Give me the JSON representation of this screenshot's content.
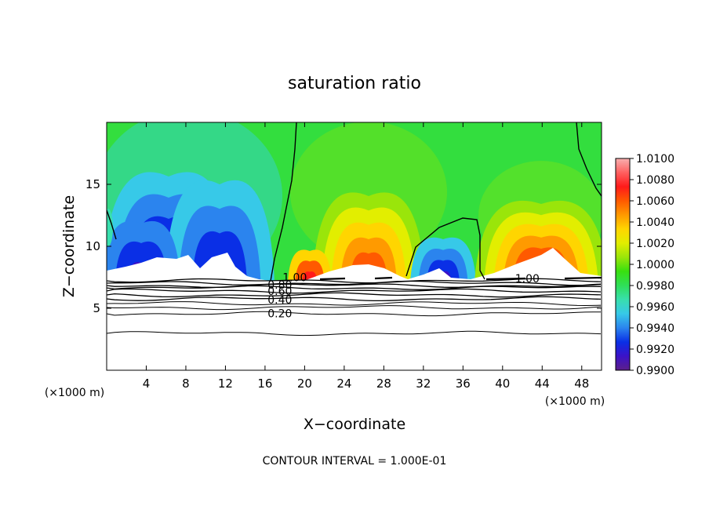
{
  "chart_data": {
    "type": "heatmap",
    "title": "saturation ratio",
    "xlabel": "X−coordinate",
    "ylabel": "Z−coordinate",
    "x_unit_left": "(×1000 m)",
    "x_unit_right": "(×1000 m)",
    "xlim": [
      0,
      50
    ],
    "ylim": [
      0,
      20
    ],
    "x_ticks": [
      4,
      8,
      12,
      16,
      20,
      24,
      28,
      32,
      36,
      40,
      44,
      48
    ],
    "y_ticks": [
      5,
      10,
      15
    ],
    "grid": false,
    "footer": "CONTOUR INTERVAL = 1.000E-01",
    "colorbar": {
      "placement": "right",
      "labels": [
        "0.9900",
        "0.9920",
        "0.9940",
        "0.9960",
        "0.9980",
        "1.0000",
        "1.0020",
        "1.0040",
        "1.0060",
        "1.0080",
        "1.0100"
      ],
      "colors": [
        "#5c1f8a",
        "#3b12c8",
        "#0a2fe6",
        "#2b84ee",
        "#37c9e8",
        "#38dfae",
        "#2fdf58",
        "#38e00f",
        "#9ae50a",
        "#e2ee00",
        "#ffd500",
        "#ff9a00",
        "#ff5a00",
        "#ff1a1a",
        "#ff6060",
        "#f8b0b0"
      ]
    },
    "contour_labels": [
      {
        "text": "1.00",
        "x": 19,
        "z": 7.5
      },
      {
        "text": "0.80",
        "x": 17.5,
        "z": 6.9
      },
      {
        "text": "0.60",
        "x": 17.5,
        "z": 6.4
      },
      {
        "text": "0.40",
        "x": 17.5,
        "z": 5.7
      },
      {
        "text": "0.20",
        "x": 17.5,
        "z": 4.6
      },
      {
        "text": "1.00",
        "x": 42.5,
        "z": 7.4
      }
    ]
  }
}
